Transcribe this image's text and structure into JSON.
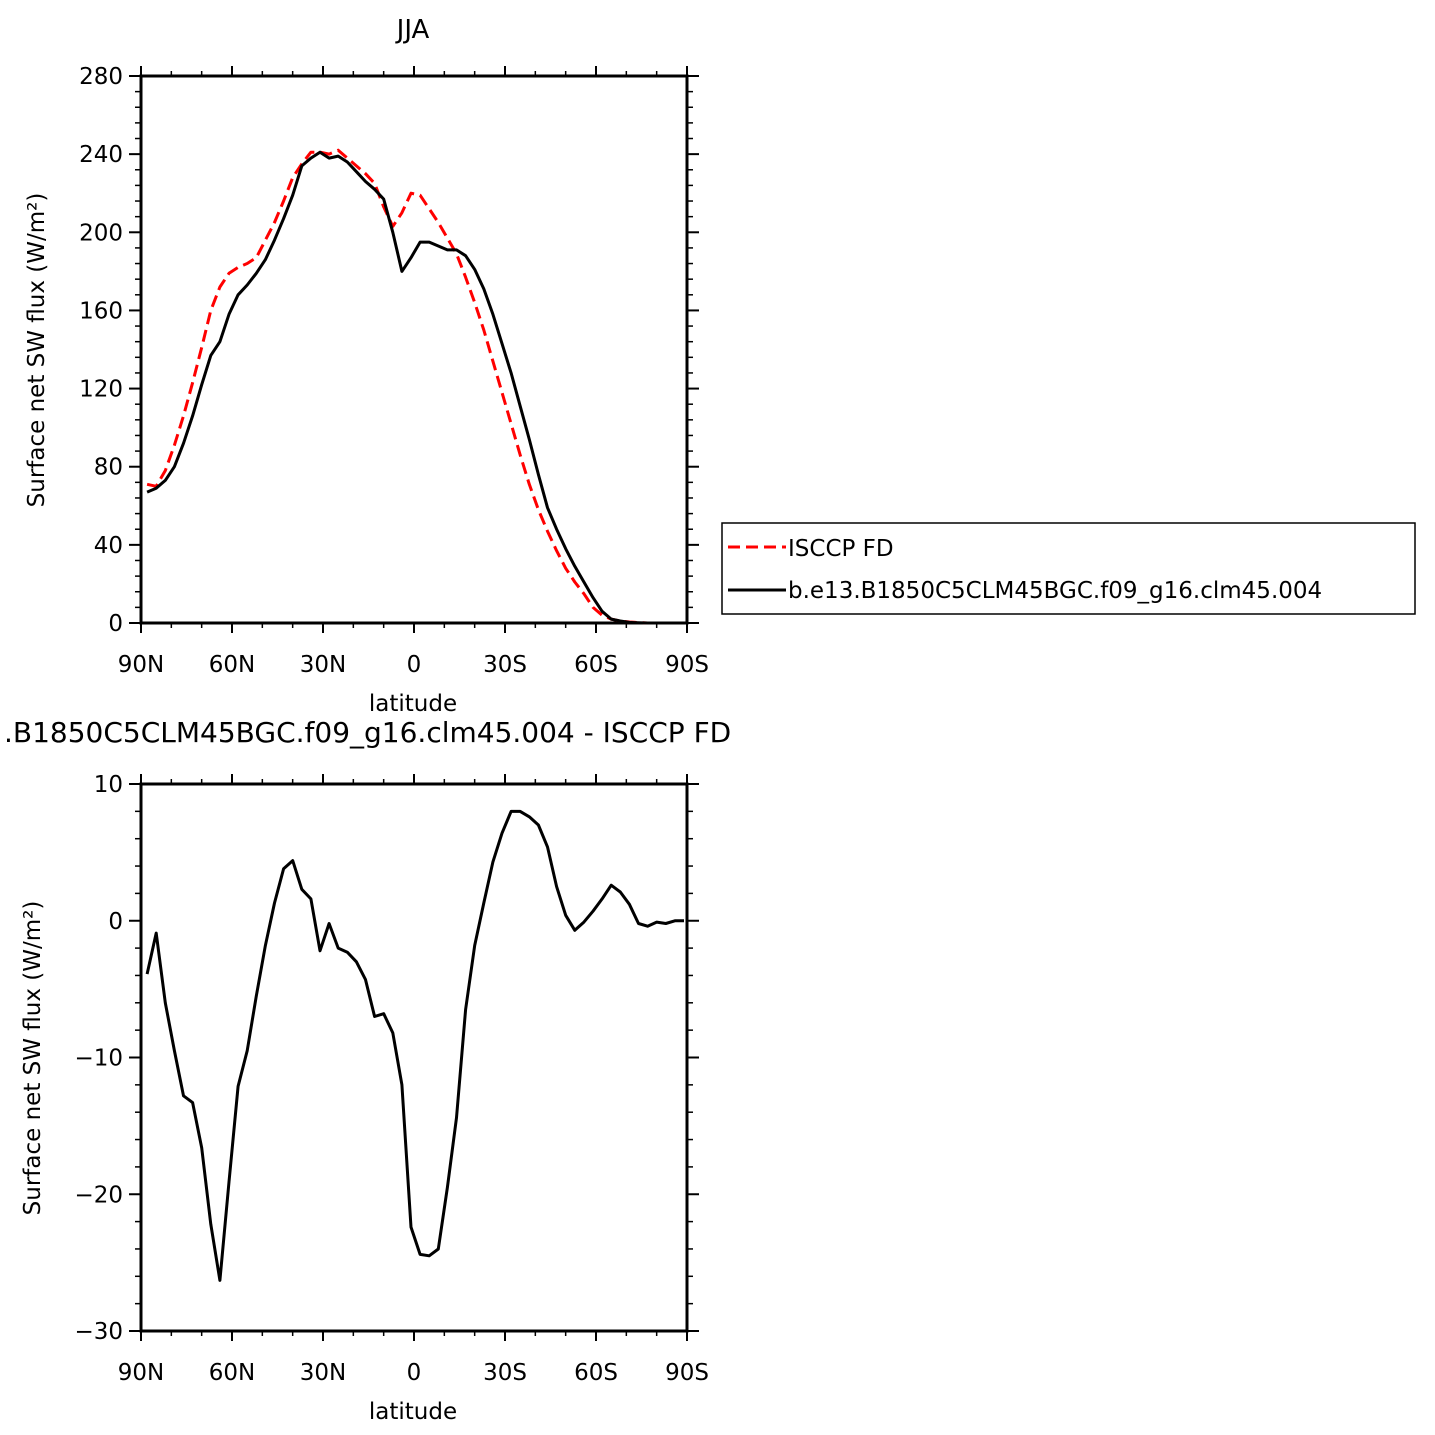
{
  "chart_data": [
    {
      "type": "line",
      "title": "JJA",
      "xlabel": "latitude",
      "ylabel": "Surface net SW flux (W/m²)",
      "xlim": [
        90,
        -90
      ],
      "ylim": [
        0,
        280
      ],
      "xticks": [
        90,
        60,
        30,
        0,
        -30,
        -60,
        -90
      ],
      "xticklabels": [
        "90N",
        "60N",
        "30N",
        "0",
        "30S",
        "60S",
        "90S"
      ],
      "yticks": [
        0,
        40,
        80,
        120,
        160,
        200,
        240,
        280
      ],
      "yticklabels": [
        "0",
        "40",
        "80",
        "120",
        "160",
        "200",
        "240",
        "280"
      ],
      "legend_position": "right",
      "series": [
        {
          "name": "ISCCP FD",
          "color": "#ff0000",
          "style": "dashed",
          "x": [
            88,
            85,
            82,
            79,
            76,
            73,
            70,
            67,
            64,
            61,
            58,
            55,
            52,
            49,
            46,
            43,
            40,
            37,
            34,
            31,
            28,
            25,
            22,
            19,
            16,
            13,
            10,
            7,
            4,
            1,
            -2,
            -5,
            -8,
            -11,
            -14,
            -17,
            -20,
            -23,
            -26,
            -29,
            -32,
            -35,
            -38,
            -41,
            -44,
            -47,
            -50,
            -53,
            -56,
            -59,
            -62,
            -65,
            -68,
            -71,
            -74,
            -77,
            -80,
            -83,
            -86,
            -89
          ],
          "y": [
            71,
            70,
            78,
            91,
            106,
            123,
            141,
            160,
            172,
            179,
            182,
            184,
            187,
            196,
            205,
            216,
            228,
            235,
            241,
            241,
            240,
            242,
            238,
            234,
            230,
            225,
            213,
            203,
            210,
            220,
            219,
            212,
            205,
            197,
            189,
            177,
            164,
            150,
            134,
            118,
            102,
            86,
            71,
            58,
            47,
            37,
            28,
            21,
            15,
            8,
            4,
            2,
            1,
            0.5,
            0.2,
            0,
            0,
            0,
            0,
            0
          ]
        },
        {
          "name": "b.e13.B1850C5CLM45BGC.f09_g16.clm45.004",
          "color": "#000000",
          "style": "solid",
          "x": [
            88,
            85,
            82,
            79,
            76,
            73,
            70,
            67,
            64,
            61,
            58,
            55,
            52,
            49,
            46,
            43,
            40,
            37,
            34,
            31,
            28,
            25,
            22,
            19,
            16,
            13,
            10,
            7,
            4,
            1,
            -2,
            -5,
            -8,
            -11,
            -14,
            -17,
            -20,
            -23,
            -26,
            -29,
            -32,
            -35,
            -38,
            -41,
            -44,
            -47,
            -50,
            -53,
            -56,
            -59,
            -62,
            -65,
            -68,
            -71,
            -74,
            -77,
            -80,
            -83,
            -86,
            -89
          ],
          "y": [
            67,
            69,
            73,
            80,
            92,
            106,
            122,
            137,
            144,
            158,
            168,
            173,
            179,
            186,
            196,
            207,
            219,
            234,
            238,
            241,
            238,
            239,
            236,
            231,
            226,
            222,
            217,
            200,
            180,
            187,
            195,
            195,
            193,
            191,
            191,
            188,
            181,
            171,
            158,
            143,
            128,
            111,
            94,
            76,
            59,
            48,
            38,
            29,
            21,
            13,
            6,
            2,
            1,
            0.3,
            0.1,
            0,
            0,
            0,
            0,
            0
          ]
        }
      ]
    },
    {
      "type": "line",
      "title": ".B1850C5CLM45BGC.f09_g16.clm45.004 - ISCCP FD",
      "xlabel": "latitude",
      "ylabel": "Surface net SW flux (W/m²)",
      "xlim": [
        90,
        -90
      ],
      "ylim": [
        -30,
        10
      ],
      "xticks": [
        90,
        60,
        30,
        0,
        -30,
        -60,
        -90
      ],
      "xticklabels": [
        "90N",
        "60N",
        "30N",
        "0",
        "30S",
        "60S",
        "90S"
      ],
      "yticks": [
        -30,
        -20,
        -10,
        0,
        10
      ],
      "yticklabels": [
        "−30",
        "−20",
        "−10",
        "0",
        "10"
      ],
      "series": [
        {
          "color": "#000000",
          "style": "solid",
          "x": [
            88,
            85,
            82,
            79,
            76,
            73,
            70,
            67,
            64,
            61,
            58,
            55,
            52,
            49,
            46,
            43,
            40,
            37,
            34,
            31,
            28,
            25,
            22,
            19,
            16,
            13,
            10,
            7,
            4,
            1,
            -2,
            -5,
            -8,
            -11,
            -14,
            -17,
            -20,
            -23,
            -26,
            -29,
            -32,
            -35,
            -38,
            -41,
            -44,
            -47,
            -50,
            -53,
            -56,
            -59,
            -62,
            -65,
            -68,
            -71,
            -74,
            -77,
            -80,
            -83,
            -86,
            -89
          ],
          "y": [
            -3.9,
            -0.9,
            -6.0,
            -9.5,
            -12.8,
            -13.3,
            -16.6,
            -22.2,
            -26.3,
            -19.1,
            -12.1,
            -9.5,
            -5.5,
            -1.8,
            1.3,
            3.8,
            4.4,
            2.3,
            1.6,
            -2.2,
            -0.2,
            -2.0,
            -2.3,
            -3.0,
            -4.3,
            -7.0,
            -6.8,
            -8.2,
            -12.0,
            -22.4,
            -24.4,
            -24.5,
            -24.0,
            -19.5,
            -14.4,
            -6.5,
            -1.8,
            1.3,
            4.3,
            6.4,
            8.0,
            8.0,
            7.6,
            7.0,
            5.4,
            2.5,
            0.4,
            -0.7,
            -0.1,
            0.7,
            1.6,
            2.6,
            2.1,
            1.2,
            -0.2,
            -0.4,
            -0.1,
            -0.2,
            0,
            0
          ]
        }
      ]
    }
  ]
}
